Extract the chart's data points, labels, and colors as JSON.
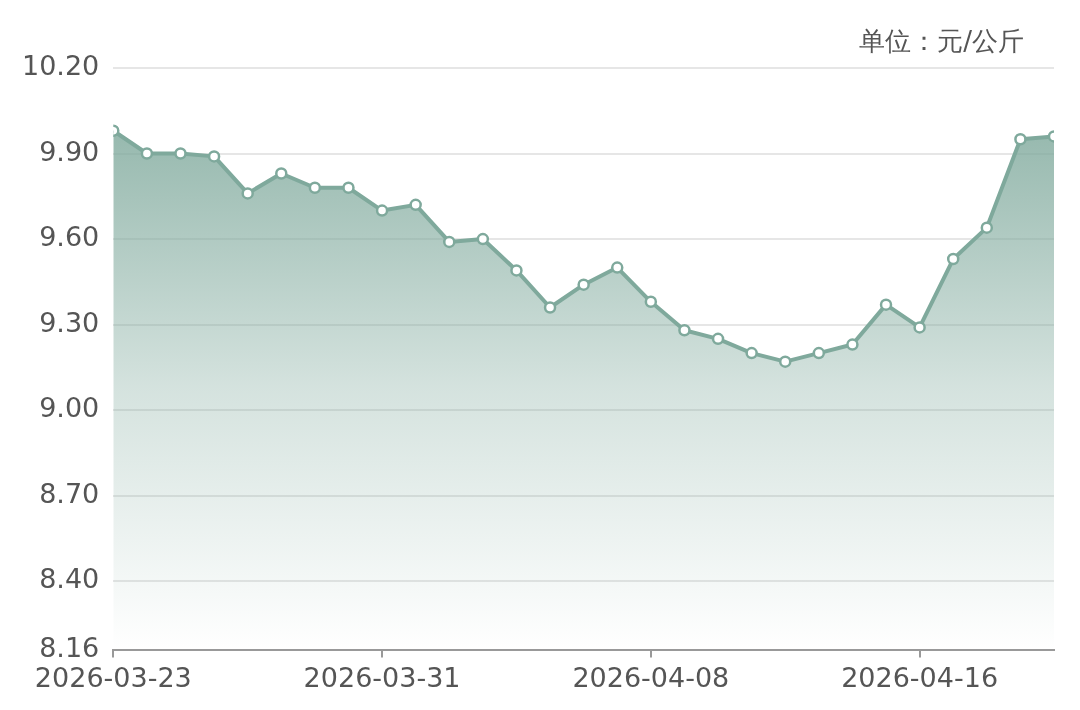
{
  "chart_data": {
    "type": "area",
    "annotations": [
      "单位：元/公斤"
    ],
    "x": [
      "2026-03-23",
      "2026-03-24",
      "2026-03-25",
      "2026-03-26",
      "2026-03-27",
      "2026-03-28",
      "2026-03-29",
      "2026-03-30",
      "2026-03-31",
      "2026-04-01",
      "2026-04-02",
      "2026-04-03",
      "2026-04-04",
      "2026-04-05",
      "2026-04-06",
      "2026-04-07",
      "2026-04-08",
      "2026-04-09",
      "2026-04-10",
      "2026-04-11",
      "2026-04-12",
      "2026-04-13",
      "2026-04-14",
      "2026-04-15",
      "2026-04-16",
      "2026-04-17",
      "2026-04-18",
      "2026-04-19",
      "2026-04-20"
    ],
    "series": [
      {
        "color": "#7fa99c",
        "values": [
          9.98,
          9.9,
          9.9,
          9.89,
          9.76,
          9.83,
          9.78,
          9.78,
          9.7,
          9.72,
          9.59,
          9.6,
          9.49,
          9.36,
          9.44,
          9.5,
          9.38,
          9.28,
          9.25,
          9.2,
          9.17,
          9.2,
          9.23,
          9.37,
          9.29,
          9.53,
          9.64,
          9.95,
          9.96
        ]
      }
    ],
    "xlim": [
      "2026-03-23",
      "2026-04-20"
    ],
    "xticks": [
      "2026-03-23",
      "2026-03-31",
      "2026-04-08",
      "2026-04-16"
    ],
    "ylim": [
      8.16,
      10.2
    ],
    "yticks": [
      8.16,
      {
        "value": 8.4,
        "label": "8.40"
      },
      {
        "value": 8.7,
        "label": "8.70"
      },
      {
        "value": 9,
        "label": "9.00"
      },
      {
        "value": 9.3,
        "label": "9.30"
      },
      {
        "value": 9.6,
        "label": "9.60"
      },
      {
        "value": 9.9,
        "label": "9.90"
      },
      {
        "value": 10.2,
        "label": "10.20"
      }
    ],
    "grid": "y",
    "marker": "circle",
    "legend": false
  }
}
